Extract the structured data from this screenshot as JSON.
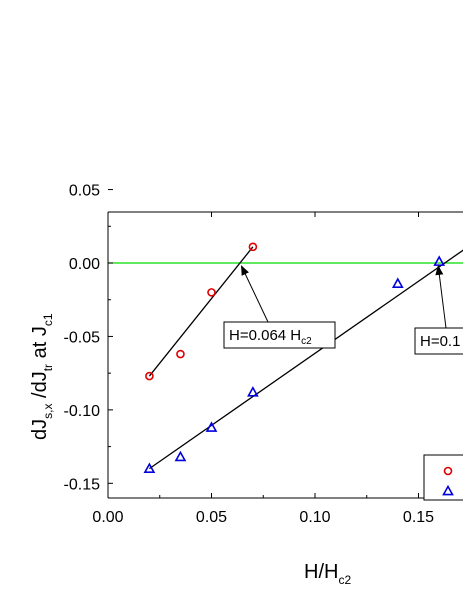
{
  "chart_data": {
    "type": "scatter",
    "title": "",
    "xlabel": {
      "main": "H/H",
      "sub": "c2"
    },
    "ylabel": {
      "p1": "dJ",
      "s1": "s,x",
      "p2": " /dJ",
      "s2": "tr",
      "p3": " at J",
      "s3": "c1"
    },
    "xlim": [
      0.0,
      0.175
    ],
    "ylim": [
      -0.16,
      0.05
    ],
    "x_ticks": [
      "0.00",
      "0.05",
      "0.10",
      "0.15"
    ],
    "y_ticks": [
      "0.05",
      "0.00",
      "-0.05",
      "-0.10",
      "-0.15"
    ],
    "reference_line": {
      "y": 0.0,
      "color": "#00dd00"
    },
    "series": [
      {
        "marker": "circle",
        "color": "#e00000",
        "x": [
          0.02,
          0.035,
          0.05,
          0.07
        ],
        "y": [
          -0.077,
          -0.062,
          -0.02,
          0.011
        ],
        "fit": {
          "x": [
            0.02,
            0.07
          ],
          "y": [
            -0.077,
            0.011
          ]
        }
      },
      {
        "marker": "triangle",
        "color": "#0000dd",
        "x": [
          0.02,
          0.035,
          0.05,
          0.07,
          0.14,
          0.16
        ],
        "y": [
          -0.14,
          -0.132,
          -0.112,
          -0.088,
          -0.014,
          0.001
        ],
        "fit": {
          "x": [
            0.02,
            0.18
          ],
          "y": [
            -0.14,
            0.017
          ]
        }
      }
    ],
    "annotations": [
      {
        "text_main": "H=0.064 H",
        "text_sub": "c2",
        "arrow_to": [
          0.064,
          0.0
        ]
      },
      {
        "text_main": "H=0.1",
        "text_sub": "",
        "arrow_to": [
          0.16,
          0.0
        ]
      }
    ],
    "legend": {
      "position": "bottom-right"
    }
  }
}
